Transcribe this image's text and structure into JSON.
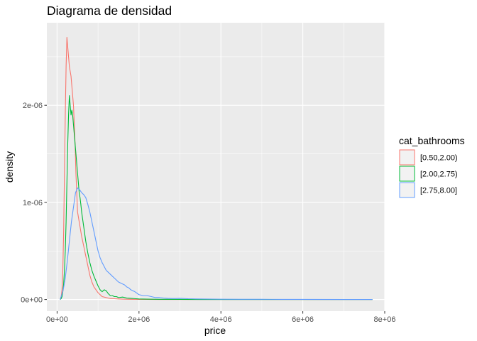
{
  "chart_data": {
    "type": "line",
    "subtype": "density",
    "title": "Diagrama de densidad",
    "xlabel": "price",
    "ylabel": "density",
    "xlim": [
      -250000,
      8000000
    ],
    "ylim": [
      -1.2e-07,
      2.85e-06
    ],
    "x_ticks": [
      {
        "value": 0,
        "label": "0e+00"
      },
      {
        "value": 2000000,
        "label": "2e+06"
      },
      {
        "value": 4000000,
        "label": "4e+06"
      },
      {
        "value": 6000000,
        "label": "6e+06"
      },
      {
        "value": 8000000,
        "label": "8e+06"
      }
    ],
    "y_ticks": [
      {
        "value": 0,
        "label": "0e+00"
      },
      {
        "value": 1e-06,
        "label": "1e-06"
      },
      {
        "value": 2e-06,
        "label": "2e-06"
      }
    ],
    "grid": true,
    "legend": {
      "title": "cat_bathrooms",
      "position": "right"
    },
    "series": [
      {
        "name": "[0.50,2.00)",
        "color": "#F8766D",
        "x": [
          75000,
          100000,
          120000,
          140000,
          160000,
          180000,
          200000,
          220000,
          240000,
          260000,
          280000,
          300000,
          320000,
          340000,
          360000,
          380000,
          400000,
          420000,
          440000,
          460000,
          480000,
          500000,
          520000,
          540000,
          560000,
          580000,
          600000,
          650000,
          700000,
          750000,
          800000,
          850000,
          900000,
          950000,
          1000000,
          1050000,
          1100000,
          1200000,
          1300000,
          1400000,
          1500000,
          1600000,
          1700000,
          1800000,
          2000000,
          2200000,
          2500000,
          3000000,
          3500000,
          4000000,
          5000000,
          6000000,
          7000000,
          7700000
        ],
        "y": [
          0.0,
          3e-08,
          1e-07,
          3e-07,
          7e-07,
          1.3e-06,
          1.9e-06,
          2.4e-06,
          2.7e-06,
          2.6e-06,
          2.5e-06,
          2.4e-06,
          2.35e-06,
          2.3e-06,
          2.2e-06,
          2.1e-06,
          2e-06,
          1.8e-06,
          1.6e-06,
          1.3e-06,
          1.1e-06,
          9e-07,
          8.5e-07,
          8e-07,
          7.5e-07,
          7e-07,
          6.5e-07,
          5.5e-07,
          4.5e-07,
          3.5e-07,
          2.5e-07,
          1.8e-07,
          1.3e-07,
          1e-07,
          7e-08,
          5e-08,
          3e-08,
          2e-08,
          1e-08,
          8e-09,
          6e-09,
          4e-09,
          3e-09,
          2e-09,
          1e-09,
          7e-10,
          4e-10,
          2e-10,
          0.0,
          0.0,
          0.0,
          0.0,
          0.0,
          0.0
        ]
      },
      {
        "name": "[2.00,2.75)",
        "color": "#00BA38",
        "x": [
          75000,
          100000,
          120000,
          140000,
          160000,
          180000,
          200000,
          220000,
          240000,
          260000,
          280000,
          300000,
          320000,
          340000,
          360000,
          380000,
          400000,
          420000,
          440000,
          460000,
          480000,
          500000,
          520000,
          540000,
          560000,
          580000,
          600000,
          650000,
          700000,
          750000,
          800000,
          850000,
          900000,
          950000,
          1000000,
          1050000,
          1100000,
          1150000,
          1200000,
          1250000,
          1300000,
          1350000,
          1400000,
          1450000,
          1500000,
          1600000,
          1700000,
          1800000,
          1900000,
          2000000,
          2200000,
          2500000,
          3000000,
          3500000,
          4000000,
          5000000,
          6000000,
          7000000,
          7700000
        ],
        "y": [
          0.0,
          1e-08,
          3e-08,
          8e-08,
          1.6e-07,
          3e-07,
          5e-07,
          8e-07,
          1.2e-06,
          1.6e-06,
          1.9e-06,
          2.1e-06,
          2e-06,
          1.9e-06,
          1.95e-06,
          1.9e-06,
          1.8e-06,
          1.7e-06,
          1.6e-06,
          1.5e-06,
          1.4e-06,
          1.3e-06,
          1.2e-06,
          1.1e-06,
          1.05e-06,
          9.8e-07,
          9e-07,
          7.5e-07,
          6e-07,
          4.8e-07,
          3.8e-07,
          3e-07,
          2.4e-07,
          1.9e-07,
          1.4e-07,
          1e-07,
          8e-08,
          1e-07,
          9e-08,
          6e-08,
          4e-08,
          4e-08,
          3e-08,
          3e-08,
          2e-08,
          2.5e-08,
          1.5e-08,
          1.2e-08,
          9e-09,
          6e-09,
          4e-09,
          2e-09,
          1e-09,
          0.0,
          0.0,
          0.0,
          0.0,
          0.0,
          0.0
        ]
      },
      {
        "name": "[2.75,8.00]",
        "color": "#619CFF",
        "x": [
          75000,
          100000,
          150000,
          200000,
          250000,
          300000,
          350000,
          400000,
          450000,
          500000,
          550000,
          600000,
          650000,
          700000,
          750000,
          800000,
          850000,
          900000,
          950000,
          1000000,
          1050000,
          1100000,
          1150000,
          1200000,
          1250000,
          1300000,
          1350000,
          1400000,
          1450000,
          1500000,
          1550000,
          1600000,
          1650000,
          1700000,
          1750000,
          1800000,
          1900000,
          2000000,
          2100000,
          2200000,
          2300000,
          2400000,
          2500000,
          2600000,
          2700000,
          2800000,
          2900000,
          3000000,
          3200000,
          3400000,
          3600000,
          3800000,
          4000000,
          4500000,
          5000000,
          5500000,
          6000000,
          7000000,
          7700000
        ],
        "y": [
          0.0,
          3e-08,
          1e-07,
          2.2e-07,
          4e-07,
          6e-07,
          8e-07,
          9.5e-07,
          1.1e-06,
          1.15e-06,
          1.13e-06,
          1.1e-06,
          1.08e-06,
          1.05e-06,
          9.8e-07,
          9e-07,
          8e-07,
          7e-07,
          6e-07,
          5e-07,
          4.3e-07,
          3.8e-07,
          3.4e-07,
          3e-07,
          2.8e-07,
          2.6e-07,
          2.4e-07,
          2.2e-07,
          2e-07,
          1.8e-07,
          1.7e-07,
          1.6e-07,
          1.5e-07,
          1.3e-07,
          1.2e-07,
          1e-07,
          8e-08,
          5e-08,
          4e-08,
          4e-08,
          3e-08,
          2e-08,
          2e-08,
          1.5e-08,
          1.2e-08,
          1e-08,
          1e-08,
          1.2e-08,
          8e-09,
          6e-09,
          5e-09,
          4e-09,
          3e-09,
          2e-09,
          2e-09,
          1e-09,
          1e-09,
          0.0,
          0.0
        ]
      }
    ]
  }
}
